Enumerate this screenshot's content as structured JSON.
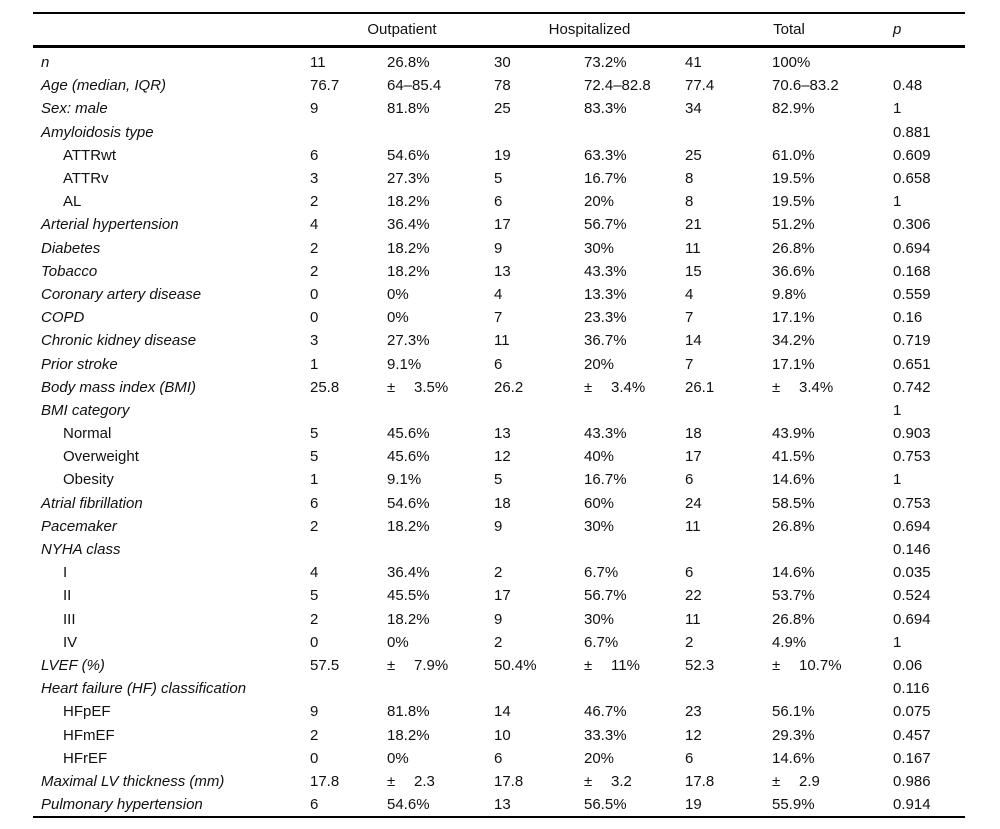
{
  "table": {
    "group_headers": [
      {
        "label": "Outpatient"
      },
      {
        "label": "Hospitalized"
      },
      {
        "label": "Total"
      }
    ],
    "p_header": "p",
    "rows": [
      {
        "label": "n",
        "indent": false,
        "values": [
          "11",
          "26.8%",
          "30",
          "73.2%",
          "41",
          "100%",
          ""
        ]
      },
      {
        "label": "Age (median, IQR)",
        "indent": false,
        "values": [
          "76.7",
          "64–85.4",
          "78",
          "72.4–82.8",
          "77.4",
          "70.6–83.2",
          "0.48"
        ]
      },
      {
        "label": "Sex: male",
        "indent": false,
        "values": [
          "9",
          "81.8%",
          "25",
          "83.3%",
          "34",
          "82.9%",
          "1"
        ]
      },
      {
        "label": "Amyloidosis type",
        "indent": false,
        "values": [
          "",
          "",
          "",
          "",
          "",
          "",
          "0.881"
        ]
      },
      {
        "label": "ATTRwt",
        "indent": true,
        "values": [
          "6",
          "54.6%",
          "19",
          "63.3%",
          "25",
          "61.0%",
          "0.609"
        ]
      },
      {
        "label": "ATTRv",
        "indent": true,
        "values": [
          "3",
          "27.3%",
          "5",
          "16.7%",
          "8",
          "19.5%",
          "0.658"
        ]
      },
      {
        "label": "AL",
        "indent": true,
        "values": [
          "2",
          "18.2%",
          "6",
          "20%",
          "8",
          "19.5%",
          "1"
        ]
      },
      {
        "label": "Arterial hypertension",
        "indent": false,
        "values": [
          "4",
          "36.4%",
          "17",
          "56.7%",
          "21",
          "51.2%",
          "0.306"
        ]
      },
      {
        "label": "Diabetes",
        "indent": false,
        "values": [
          "2",
          "18.2%",
          "9",
          "30%",
          "11",
          "26.8%",
          "0.694"
        ]
      },
      {
        "label": "Tobacco",
        "indent": false,
        "values": [
          "2",
          "18.2%",
          "13",
          "43.3%",
          "15",
          "36.6%",
          "0.168"
        ]
      },
      {
        "label": "Coronary artery disease",
        "indent": false,
        "values": [
          "0",
          "0%",
          "4",
          "13.3%",
          "4",
          "9.8%",
          "0.559"
        ]
      },
      {
        "label": "COPD",
        "indent": false,
        "values": [
          "0",
          "0%",
          "7",
          "23.3%",
          "7",
          "17.1%",
          "0.16"
        ]
      },
      {
        "label": "Chronic kidney disease",
        "indent": false,
        "values": [
          "3",
          "27.3%",
          "11",
          "36.7%",
          "14",
          "34.2%",
          "0.719"
        ]
      },
      {
        "label": "Prior stroke",
        "indent": false,
        "values": [
          "1",
          "9.1%",
          "6",
          "20%",
          "7",
          "17.1%",
          "0.651"
        ]
      },
      {
        "label": "Body mass index (BMI)",
        "indent": false,
        "values": [
          "25.8",
          "± 3.5%",
          "26.2",
          "± 3.4%",
          "26.1",
          "± 3.4%",
          "0.742"
        ]
      },
      {
        "label": "BMI category",
        "indent": false,
        "values": [
          "",
          "",
          "",
          "",
          "",
          "",
          "1"
        ]
      },
      {
        "label": "Normal",
        "indent": true,
        "values": [
          "5",
          "45.6%",
          "13",
          "43.3%",
          "18",
          "43.9%",
          "0.903"
        ]
      },
      {
        "label": "Overweight",
        "indent": true,
        "values": [
          "5",
          "45.6%",
          "12",
          "40%",
          "17",
          "41.5%",
          "0.753"
        ]
      },
      {
        "label": "Obesity",
        "indent": true,
        "values": [
          "1",
          "9.1%",
          "5",
          "16.7%",
          "6",
          "14.6%",
          "1"
        ]
      },
      {
        "label": "Atrial fibrillation",
        "indent": false,
        "values": [
          "6",
          "54.6%",
          "18",
          "60%",
          "24",
          "58.5%",
          "0.753"
        ]
      },
      {
        "label": "Pacemaker",
        "indent": false,
        "values": [
          "2",
          "18.2%",
          "9",
          "30%",
          "11",
          "26.8%",
          "0.694"
        ]
      },
      {
        "label": "NYHA class",
        "indent": false,
        "values": [
          "",
          "",
          "",
          "",
          "",
          "",
          "0.146"
        ]
      },
      {
        "label": "I",
        "indent": true,
        "values": [
          "4",
          "36.4%",
          "2",
          "6.7%",
          "6",
          "14.6%",
          "0.035"
        ]
      },
      {
        "label": "II",
        "indent": true,
        "values": [
          "5",
          "45.5%",
          "17",
          "56.7%",
          "22",
          "53.7%",
          "0.524"
        ]
      },
      {
        "label": "III",
        "indent": true,
        "values": [
          "2",
          "18.2%",
          "9",
          "30%",
          "11",
          "26.8%",
          "0.694"
        ]
      },
      {
        "label": "IV",
        "indent": true,
        "values": [
          "0",
          "0%",
          "2",
          "6.7%",
          "2",
          "4.9%",
          "1"
        ]
      },
      {
        "label": "LVEF (%)",
        "indent": false,
        "values": [
          "57.5",
          "± 7.9%",
          "50.4%",
          "± 11%",
          "52.3",
          "± 10.7%",
          "0.06"
        ]
      },
      {
        "label": "Heart failure (HF) classification",
        "indent": false,
        "values": [
          "",
          "",
          "",
          "",
          "",
          "",
          "0.116"
        ]
      },
      {
        "label": "HFpEF",
        "indent": true,
        "values": [
          "9",
          "81.8%",
          "14",
          "46.7%",
          "23",
          "56.1%",
          "0.075"
        ]
      },
      {
        "label": "HFmEF",
        "indent": true,
        "values": [
          "2",
          "18.2%",
          "10",
          "33.3%",
          "12",
          "29.3%",
          "0.457"
        ]
      },
      {
        "label": "HFrEF",
        "indent": true,
        "values": [
          "0",
          "0%",
          "6",
          "20%",
          "6",
          "14.6%",
          "0.167"
        ]
      },
      {
        "label": "Maximal LV thickness (mm)",
        "indent": false,
        "values": [
          "17.8",
          "± 2.3",
          "17.8",
          "± 3.2",
          "17.8",
          "± 2.9",
          "0.986"
        ]
      },
      {
        "label": "Pulmonary hypertension",
        "indent": false,
        "values": [
          "6",
          "54.6%",
          "13",
          "56.5%",
          "19",
          "55.9%",
          "0.914"
        ]
      }
    ]
  }
}
